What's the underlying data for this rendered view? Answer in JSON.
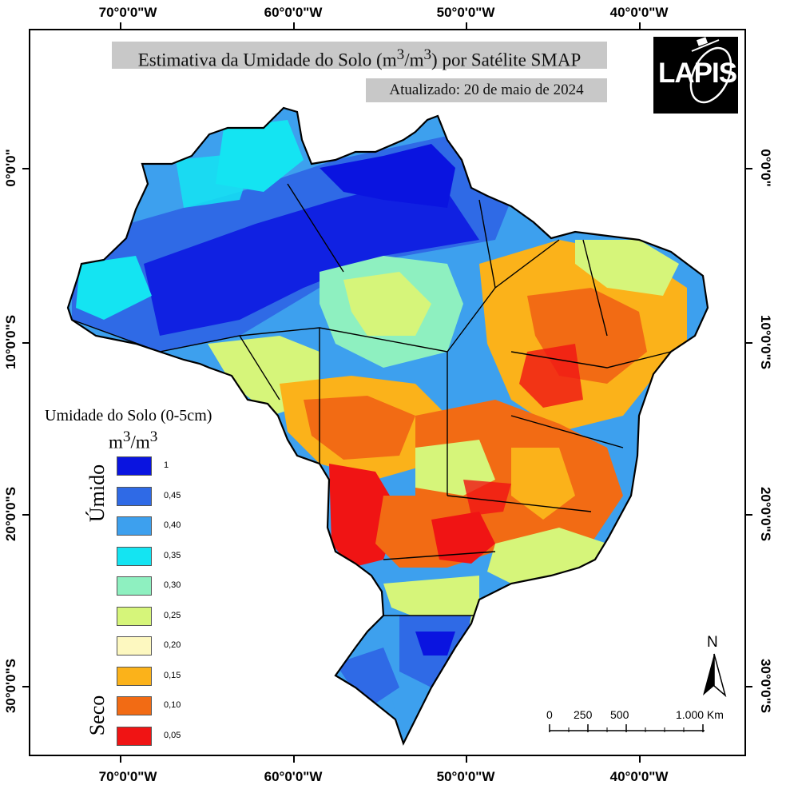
{
  "title_main": "Estimativa da Umidade do Solo (m",
  "title_sup1": "3",
  "title_mid": "/m",
  "title_sup2": "3",
  "title_end": ") por Satélite SMAP",
  "subtitle": "Atualizado: 20 de maio de 2024",
  "logo_text": "LAPIS",
  "coords_top": [
    "70°0'0\"W",
    "60°0'0\"W",
    "50°0'0\"W",
    "40°0'0\"W"
  ],
  "coords_bottom": [
    "70°0'0\"W",
    "60°0'0\"W",
    "50°0'0\"W",
    "40°0'0\"W"
  ],
  "coords_left": [
    "0°0'0\"",
    "10°0'0\"S",
    "20°0'0\"S",
    "30°0'0\"S"
  ],
  "coords_right": [
    "0°0'0\"",
    "10°0'0\"S",
    "20°0'0\"S",
    "30°0'0\"S"
  ],
  "legend": {
    "title": "Umidade do Solo (0-5cm)",
    "unit_main": "m",
    "unit_sup1": "3",
    "unit_mid": "/m",
    "unit_sup2": "3",
    "wet_label": "Úmido",
    "dry_label": "Seco",
    "classes": [
      {
        "label": "1",
        "color": "#0a14e0"
      },
      {
        "label": "0,45",
        "color": "#2f6ae6"
      },
      {
        "label": "0,40",
        "color": "#3da0ee"
      },
      {
        "label": "0,35",
        "color": "#14e4f2"
      },
      {
        "label": "0,30",
        "color": "#8ef0c0"
      },
      {
        "label": "0,25",
        "color": "#d6f57a"
      },
      {
        "label": "0,20",
        "color": "#fdf8c0"
      },
      {
        "label": "0,15",
        "color": "#fbb21a"
      },
      {
        "label": "0,10",
        "color": "#f26b14"
      },
      {
        "label": "0,05",
        "color": "#f01414"
      }
    ]
  },
  "north_label": "N",
  "scale_labels": [
    "0",
    "250",
    "500",
    "1.000 Km"
  ]
}
